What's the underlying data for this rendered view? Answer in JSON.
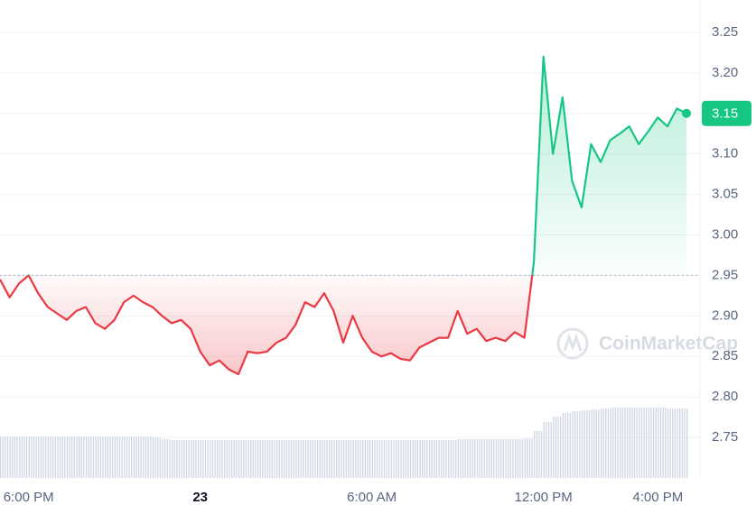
{
  "chart_data": {
    "type": "line",
    "categories": [
      null,
      null,
      null,
      "6:00 PM",
      null,
      null,
      null,
      null,
      null,
      null,
      null,
      null,
      null,
      null,
      null,
      null,
      null,
      null,
      null,
      null,
      null,
      "23",
      null,
      null,
      null,
      null,
      null,
      null,
      null,
      null,
      null,
      null,
      null,
      null,
      null,
      null,
      null,
      null,
      null,
      "6:00 AM",
      null,
      null,
      null,
      null,
      null,
      null,
      null,
      null,
      null,
      null,
      null,
      null,
      null,
      null,
      null,
      null,
      null,
      "12:00 PM",
      null,
      null,
      null,
      null,
      null,
      null,
      null,
      null,
      null,
      null,
      null,
      "4:00 PM",
      null,
      null,
      null
    ],
    "values": [
      2.945,
      2.923,
      2.94,
      2.95,
      2.928,
      2.911,
      2.903,
      2.895,
      2.906,
      2.911,
      2.891,
      2.884,
      2.895,
      2.917,
      2.925,
      2.917,
      2.911,
      2.9,
      2.891,
      2.895,
      2.884,
      2.856,
      2.839,
      2.845,
      2.834,
      2.828,
      2.856,
      2.854,
      2.856,
      2.867,
      2.873,
      2.889,
      2.917,
      2.911,
      2.928,
      2.906,
      2.867,
      2.9,
      2.873,
      2.856,
      2.85,
      2.854,
      2.847,
      2.845,
      2.861,
      2.867,
      2.873,
      2.873,
      2.906,
      2.878,
      2.884,
      2.869,
      2.873,
      2.869,
      2.88,
      2.873,
      2.967,
      3.22,
      3.1,
      3.17,
      3.067,
      3.034,
      3.112,
      3.09,
      3.117,
      3.125,
      3.134,
      3.112,
      3.128,
      3.145,
      3.134,
      3.156,
      3.15
    ],
    "volume": [
      46,
      46,
      46,
      46,
      46,
      46,
      46,
      46,
      46,
      46,
      46,
      46,
      46,
      46,
      46,
      46,
      45,
      43,
      42,
      42,
      42,
      42,
      42,
      42,
      42,
      42,
      42,
      42,
      42,
      42,
      42,
      42,
      42,
      42,
      42,
      42,
      42,
      42,
      42,
      42,
      42,
      42,
      42,
      42,
      42,
      42,
      42,
      42,
      43,
      43,
      43,
      43,
      43,
      43,
      43,
      44,
      52,
      62,
      68,
      72,
      74,
      75,
      76,
      77,
      78,
      78,
      78,
      78,
      78,
      78,
      77,
      77,
      77
    ],
    "volume_lim": [
      0,
      100
    ],
    "reference": 2.95,
    "last_value_label": "3.15",
    "up_color": "#16c784",
    "down_color": "#ea3943",
    "watermark": "CoinMarketCap",
    "ylim": [
      2.7,
      3.29
    ],
    "yticks": [
      2.75,
      {
        "value": 2.8,
        "label": "2.80"
      },
      2.85,
      {
        "value": 2.9,
        "label": "2.90"
      },
      2.95,
      {
        "value": 3,
        "label": "3.00"
      },
      3.05,
      {
        "value": 3.1,
        "label": "3.10"
      },
      3.15,
      {
        "value": 3.2,
        "label": "3.20"
      },
      3.25
    ],
    "grid": true
  }
}
